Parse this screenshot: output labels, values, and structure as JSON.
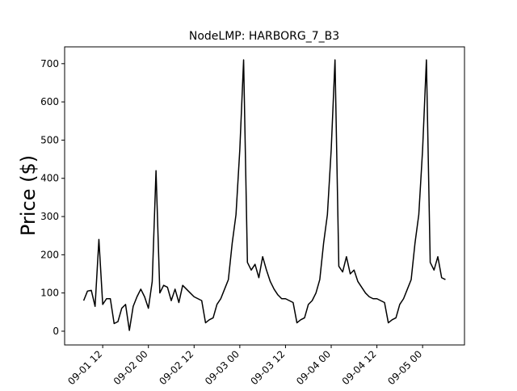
{
  "chart_data": {
    "type": "line",
    "title": "NodeLMP: HARBORG_7_B3",
    "y_label": "Price ($)",
    "color": "#000000",
    "x": [
      "09-01 07",
      "09-01 08",
      "09-01 09",
      "09-01 10",
      "09-01 11",
      "09-01 12",
      "09-01 13",
      "09-01 14",
      "09-01 15",
      "09-01 16",
      "09-01 17",
      "09-01 18",
      "09-01 19",
      "09-01 20",
      "09-01 21",
      "09-01 22",
      "09-01 23",
      "09-02 00",
      "09-02 01",
      "09-02 02",
      "09-02 03",
      "09-02 04",
      "09-02 05",
      "09-02 06",
      "09-02 07",
      "09-02 08",
      "09-02 09",
      "09-02 10",
      "09-02 11",
      "09-02 12",
      "09-02 13",
      "09-02 14",
      "09-02 15",
      "09-02 16",
      "09-02 17",
      "09-02 18",
      "09-02 19",
      "09-02 20",
      "09-02 21",
      "09-02 22",
      "09-02 23",
      "09-03 00",
      "09-03 01",
      "09-03 02",
      "09-03 03",
      "09-03 04",
      "09-03 05",
      "09-03 06",
      "09-03 07",
      "09-03 08",
      "09-03 09",
      "09-03 10",
      "09-03 11",
      "09-03 12",
      "09-03 13",
      "09-03 14",
      "09-03 15",
      "09-03 16",
      "09-03 17",
      "09-03 18",
      "09-03 19",
      "09-03 20",
      "09-03 21",
      "09-03 22",
      "09-03 23",
      "09-04 00",
      "09-04 01",
      "09-04 02",
      "09-04 03",
      "09-04 04",
      "09-04 05",
      "09-04 06",
      "09-04 07",
      "09-04 08",
      "09-04 09",
      "09-04 10",
      "09-04 11",
      "09-04 12",
      "09-04 13",
      "09-04 14",
      "09-04 15",
      "09-04 16",
      "09-04 17",
      "09-04 18",
      "09-04 19",
      "09-04 20",
      "09-04 21",
      "09-04 22",
      "09-04 23",
      "09-05 00",
      "09-05 01",
      "09-05 02",
      "09-05 03",
      "09-05 04",
      "09-05 05",
      "09-05 06"
    ],
    "values": [
      80,
      105,
      107,
      65,
      240,
      70,
      85,
      85,
      20,
      25,
      60,
      70,
      2,
      65,
      90,
      110,
      90,
      60,
      130,
      420,
      100,
      120,
      115,
      80,
      110,
      75,
      120,
      110,
      100,
      90,
      85,
      80,
      22,
      30,
      35,
      70,
      85,
      110,
      135,
      230,
      305,
      475,
      710,
      180,
      160,
      175,
      140,
      195,
      160,
      130,
      110,
      95,
      85,
      85,
      80,
      75,
      22,
      30,
      35,
      70,
      80,
      100,
      135,
      230,
      305,
      475,
      710,
      170,
      155,
      195,
      150,
      160,
      130,
      115,
      100,
      90,
      85,
      85,
      80,
      75,
      22,
      30,
      35,
      70,
      85,
      110,
      135,
      230,
      305,
      475,
      710,
      180,
      160,
      195,
      140,
      135
    ],
    "xlim": [
      "09-01 02",
      "09-05 11"
    ],
    "xticks": [
      "09-01 12",
      "09-02 00",
      "09-02 12",
      "09-03 00",
      "09-03 12",
      "09-04 00",
      "09-04 12",
      "09-05 00"
    ],
    "ylim": [
      -36,
      744
    ],
    "yticks": [
      0,
      100,
      200,
      300,
      400,
      500,
      600,
      700
    ]
  }
}
